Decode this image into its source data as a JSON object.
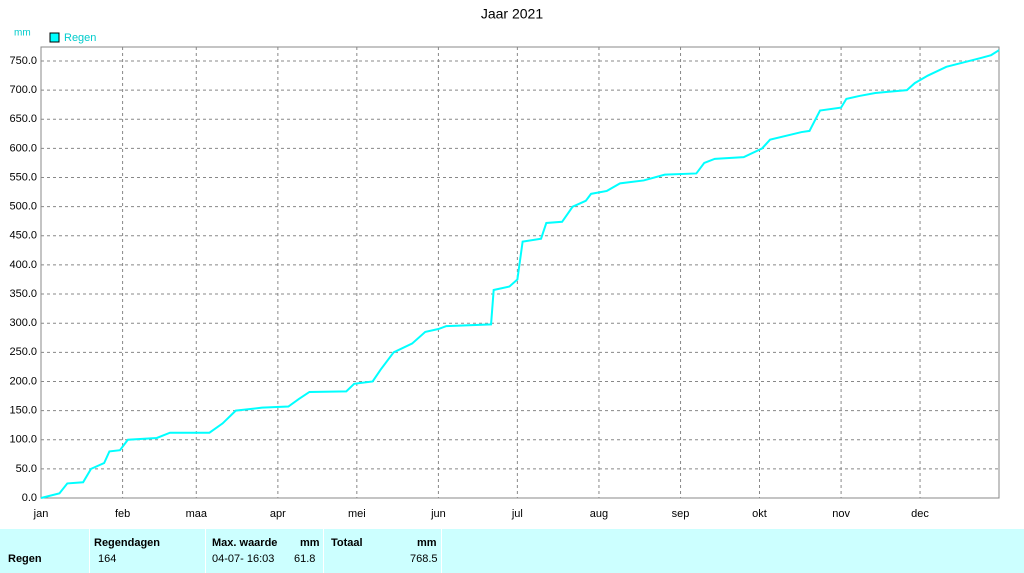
{
  "chart_data": {
    "type": "line",
    "title": "Jaar 2021",
    "y_unit": "mm",
    "x": [
      1,
      8,
      11,
      17,
      20,
      25,
      27,
      31,
      34,
      45,
      50,
      65,
      70,
      75,
      85,
      95,
      99,
      103,
      117,
      120,
      127,
      130,
      135,
      142,
      147,
      152,
      155,
      172,
      173,
      179,
      182,
      184,
      191,
      193,
      199,
      203,
      208,
      210,
      216,
      221,
      230,
      238,
      250,
      253,
      257,
      268,
      275,
      278,
      290,
      293,
      297,
      305,
      307,
      312,
      318,
      330,
      333,
      338,
      345,
      358,
      362,
      365
    ],
    "series": [
      {
        "name": "Regen",
        "color": "#00ffff",
        "values": [
          0,
          8,
          25,
          27,
          50,
          60,
          80,
          82,
          100,
          103,
          112,
          112,
          128,
          150,
          155,
          157,
          170,
          182,
          183,
          196,
          200,
          220,
          250,
          265,
          285,
          290,
          295,
          298,
          357,
          363,
          375,
          440,
          445,
          472,
          474,
          500,
          510,
          522,
          527,
          540,
          545,
          555,
          557,
          575,
          582,
          585,
          600,
          615,
          628,
          630,
          665,
          670,
          685,
          690,
          695,
          700,
          712,
          725,
          740,
          755,
          760,
          768.5
        ]
      }
    ],
    "xlim": [
      1,
      365
    ],
    "xticks": [
      {
        "value": 1,
        "label": "jan"
      },
      {
        "value": 32,
        "label": "feb"
      },
      {
        "value": 60,
        "label": "maa"
      },
      {
        "value": 91,
        "label": "apr"
      },
      {
        "value": 121,
        "label": "mei"
      },
      {
        "value": 152,
        "label": "jun"
      },
      {
        "value": 182,
        "label": "jul"
      },
      {
        "value": 213,
        "label": "aug"
      },
      {
        "value": 244,
        "label": "sep"
      },
      {
        "value": 274,
        "label": "okt"
      },
      {
        "value": 305,
        "label": "nov"
      },
      {
        "value": 335,
        "label": "dec"
      }
    ],
    "ylim": [
      0,
      774
    ],
    "yticks": [
      {
        "value": 0,
        "label": "0.0"
      },
      {
        "value": 50,
        "label": "50.0"
      },
      {
        "value": 100,
        "label": "100.0"
      },
      {
        "value": 150,
        "label": "150.0"
      },
      {
        "value": 200,
        "label": "200.0"
      },
      {
        "value": 250,
        "label": "250.0"
      },
      {
        "value": 300,
        "label": "300.0"
      },
      {
        "value": 350,
        "label": "350.0"
      },
      {
        "value": 400,
        "label": "400.0"
      },
      {
        "value": 450,
        "label": "450.0"
      },
      {
        "value": 500,
        "label": "500.0"
      },
      {
        "value": 550,
        "label": "550.0"
      },
      {
        "value": 600,
        "label": "600.0"
      },
      {
        "value": 650,
        "label": "650.0"
      },
      {
        "value": 700,
        "label": "700.0"
      },
      {
        "value": 750,
        "label": "750.0"
      }
    ],
    "grid": true
  },
  "table": {
    "row_label": "Regen",
    "regendagen_header": "Regendagen",
    "regendagen": "164",
    "max_header": "Max. waarde",
    "max_unit": "mm",
    "max_date": "04-07- 16:03",
    "max_value": "61.8",
    "totaal_header": "Totaal",
    "totaal_unit": "mm",
    "totaal": "768.5"
  }
}
